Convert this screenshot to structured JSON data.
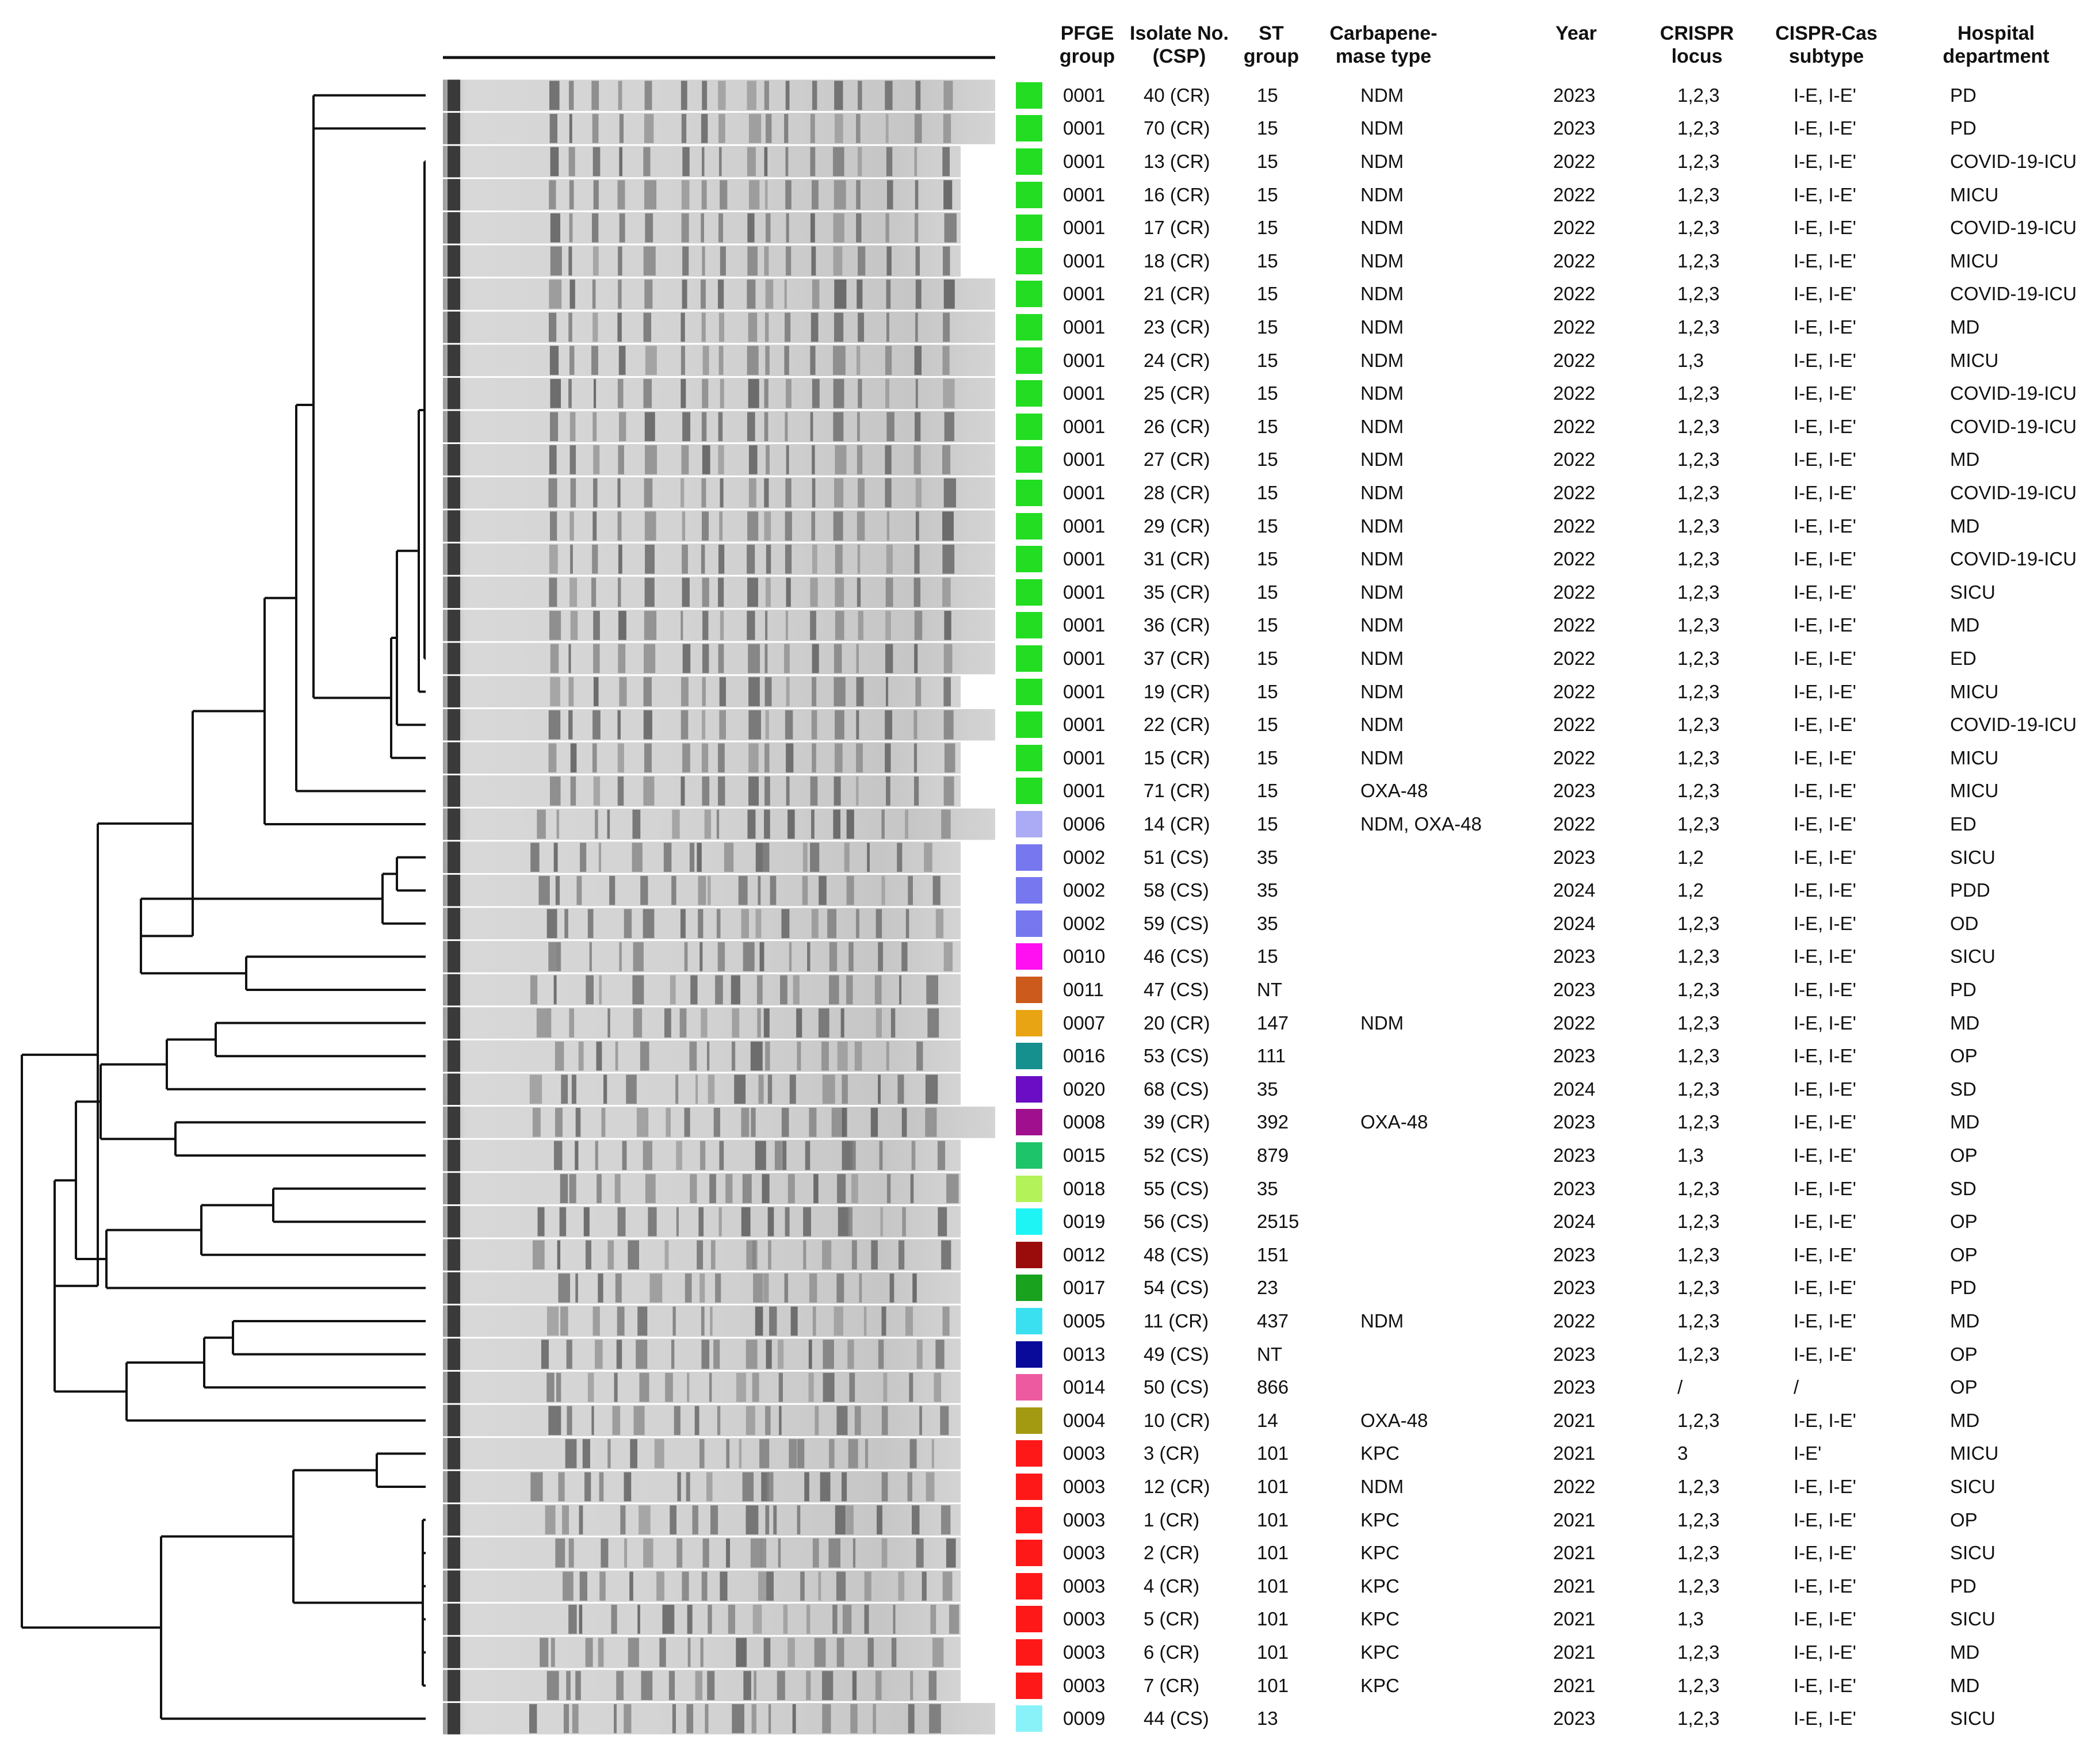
{
  "headers": {
    "pfge": "PFGE\ngroup",
    "isolate": "Isolate No.\n(CSP)",
    "st": "ST\ngroup",
    "carb": "Carbapene-\nmase type",
    "year": "Year",
    "crispr": "CRISPR\nlocus",
    "cas": "CISPR-Cas\nsubtype",
    "dept": "Hospital\ndepartment"
  },
  "rows": [
    {
      "color": "#22dd22",
      "pfge": "0001",
      "isolate": "40 (CR)",
      "st": "15",
      "carb": "NDM",
      "year": "2023",
      "crispr": "1,2,3",
      "cas": "I-E, I-E'",
      "dept": "PD"
    },
    {
      "color": "#22dd22",
      "pfge": "0001",
      "isolate": "70 (CR)",
      "st": "15",
      "carb": "NDM",
      "year": "2023",
      "crispr": "1,2,3",
      "cas": "I-E, I-E'",
      "dept": "PD"
    },
    {
      "color": "#22dd22",
      "pfge": "0001",
      "isolate": "13 (CR)",
      "st": "15",
      "carb": "NDM",
      "year": "2022",
      "crispr": "1,2,3",
      "cas": "I-E, I-E'",
      "dept": "COVID-19-ICU"
    },
    {
      "color": "#22dd22",
      "pfge": "0001",
      "isolate": "16 (CR)",
      "st": "15",
      "carb": "NDM",
      "year": "2022",
      "crispr": "1,2,3",
      "cas": "I-E, I-E'",
      "dept": "MICU"
    },
    {
      "color": "#22dd22",
      "pfge": "0001",
      "isolate": "17 (CR)",
      "st": "15",
      "carb": "NDM",
      "year": "2022",
      "crispr": "1,2,3",
      "cas": "I-E, I-E'",
      "dept": "COVID-19-ICU"
    },
    {
      "color": "#22dd22",
      "pfge": "0001",
      "isolate": "18 (CR)",
      "st": "15",
      "carb": "NDM",
      "year": "2022",
      "crispr": "1,2,3",
      "cas": "I-E, I-E'",
      "dept": "MICU"
    },
    {
      "color": "#22dd22",
      "pfge": "0001",
      "isolate": "21 (CR)",
      "st": "15",
      "carb": "NDM",
      "year": "2022",
      "crispr": "1,2,3",
      "cas": "I-E, I-E'",
      "dept": "COVID-19-ICU"
    },
    {
      "color": "#22dd22",
      "pfge": "0001",
      "isolate": "23 (CR)",
      "st": "15",
      "carb": "NDM",
      "year": "2022",
      "crispr": "1,2,3",
      "cas": "I-E, I-E'",
      "dept": "MD"
    },
    {
      "color": "#22dd22",
      "pfge": "0001",
      "isolate": "24 (CR)",
      "st": "15",
      "carb": "NDM",
      "year": "2022",
      "crispr": "1,3",
      "cas": "I-E, I-E'",
      "dept": "MICU"
    },
    {
      "color": "#22dd22",
      "pfge": "0001",
      "isolate": "25 (CR)",
      "st": "15",
      "carb": "NDM",
      "year": "2022",
      "crispr": "1,2,3",
      "cas": "I-E, I-E'",
      "dept": "COVID-19-ICU"
    },
    {
      "color": "#22dd22",
      "pfge": "0001",
      "isolate": "26 (CR)",
      "st": "15",
      "carb": "NDM",
      "year": "2022",
      "crispr": "1,2,3",
      "cas": "I-E, I-E'",
      "dept": "COVID-19-ICU"
    },
    {
      "color": "#22dd22",
      "pfge": "0001",
      "isolate": "27 (CR)",
      "st": "15",
      "carb": "NDM",
      "year": "2022",
      "crispr": "1,2,3",
      "cas": "I-E, I-E'",
      "dept": "MD"
    },
    {
      "color": "#22dd22",
      "pfge": "0001",
      "isolate": "28 (CR)",
      "st": "15",
      "carb": "NDM",
      "year": "2022",
      "crispr": "1,2,3",
      "cas": "I-E, I-E'",
      "dept": "COVID-19-ICU"
    },
    {
      "color": "#22dd22",
      "pfge": "0001",
      "isolate": "29 (CR)",
      "st": "15",
      "carb": "NDM",
      "year": "2022",
      "crispr": "1,2,3",
      "cas": "I-E, I-E'",
      "dept": "MD"
    },
    {
      "color": "#22dd22",
      "pfge": "0001",
      "isolate": "31 (CR)",
      "st": "15",
      "carb": "NDM",
      "year": "2022",
      "crispr": "1,2,3",
      "cas": "I-E, I-E'",
      "dept": "COVID-19-ICU"
    },
    {
      "color": "#22dd22",
      "pfge": "0001",
      "isolate": "35 (CR)",
      "st": "15",
      "carb": "NDM",
      "year": "2022",
      "crispr": "1,2,3",
      "cas": "I-E, I-E'",
      "dept": "SICU"
    },
    {
      "color": "#22dd22",
      "pfge": "0001",
      "isolate": "36 (CR)",
      "st": "15",
      "carb": "NDM",
      "year": "2022",
      "crispr": "1,2,3",
      "cas": "I-E, I-E'",
      "dept": "MD"
    },
    {
      "color": "#22dd22",
      "pfge": "0001",
      "isolate": "37 (CR)",
      "st": "15",
      "carb": "NDM",
      "year": "2022",
      "crispr": "1,2,3",
      "cas": "I-E, I-E'",
      "dept": "ED"
    },
    {
      "color": "#22dd22",
      "pfge": "0001",
      "isolate": "19 (CR)",
      "st": "15",
      "carb": "NDM",
      "year": "2022",
      "crispr": "1,2,3",
      "cas": "I-E, I-E'",
      "dept": "MICU"
    },
    {
      "color": "#22dd22",
      "pfge": "0001",
      "isolate": "22 (CR)",
      "st": "15",
      "carb": "NDM",
      "year": "2022",
      "crispr": "1,2,3",
      "cas": "I-E, I-E'",
      "dept": "COVID-19-ICU"
    },
    {
      "color": "#22dd22",
      "pfge": "0001",
      "isolate": "15 (CR)",
      "st": "15",
      "carb": "NDM",
      "year": "2022",
      "crispr": "1,2,3",
      "cas": "I-E, I-E'",
      "dept": "MICU"
    },
    {
      "color": "#22dd22",
      "pfge": "0001",
      "isolate": "71 (CR)",
      "st": "15",
      "carb": "OXA-48",
      "year": "2023",
      "crispr": "1,2,3",
      "cas": "I-E, I-E'",
      "dept": "MICU"
    },
    {
      "color": "#aaaaf5",
      "pfge": "0006",
      "isolate": "14 (CR)",
      "st": "15",
      "carb": "NDM, OXA-48",
      "year": "2022",
      "crispr": "1,2,3",
      "cas": "I-E, I-E'",
      "dept": "ED"
    },
    {
      "color": "#7777f0",
      "pfge": "0002",
      "isolate": "51 (CS)",
      "st": "35",
      "carb": "",
      "year": "2023",
      "crispr": "1,2",
      "cas": "I-E, I-E'",
      "dept": "SICU"
    },
    {
      "color": "#7777f0",
      "pfge": "0002",
      "isolate": "58 (CS)",
      "st": "35",
      "carb": "",
      "year": "2024",
      "crispr": "1,2",
      "cas": "I-E, I-E'",
      "dept": "PDD"
    },
    {
      "color": "#7777f0",
      "pfge": "0002",
      "isolate": "59 (CS)",
      "st": "35",
      "carb": "",
      "year": "2024",
      "crispr": "1,2,3",
      "cas": "I-E, I-E'",
      "dept": "OD"
    },
    {
      "color": "#ff10f0",
      "pfge": "0010",
      "isolate": "46 (CS)",
      "st": "15",
      "carb": "",
      "year": "2023",
      "crispr": "1,2,3",
      "cas": "I-E, I-E'",
      "dept": "SICU"
    },
    {
      "color": "#cc5a1c",
      "pfge": "0011",
      "isolate": "47 (CS)",
      "st": "NT",
      "carb": "",
      "year": "2023",
      "crispr": "1,2,3",
      "cas": "I-E, I-E'",
      "dept": "PD"
    },
    {
      "color": "#e8a412",
      "pfge": "0007",
      "isolate": "20 (CR)",
      "st": "147",
      "carb": "NDM",
      "year": "2022",
      "crispr": "1,2,3",
      "cas": "I-E, I-E'",
      "dept": "MD"
    },
    {
      "color": "#168f8f",
      "pfge": "0016",
      "isolate": "53 (CS)",
      "st": "111",
      "carb": "",
      "year": "2023",
      "crispr": "1,2,3",
      "cas": "I-E, I-E'",
      "dept": "OP"
    },
    {
      "color": "#6a0dc4",
      "pfge": "0020",
      "isolate": "68 (CS)",
      "st": "35",
      "carb": "",
      "year": "2024",
      "crispr": "1,2,3",
      "cas": "I-E, I-E'",
      "dept": "SD"
    },
    {
      "color": "#a0108e",
      "pfge": "0008",
      "isolate": "39 (CR)",
      "st": "392",
      "carb": "OXA-48",
      "year": "2023",
      "crispr": "1,2,3",
      "cas": "I-E, I-E'",
      "dept": "MD"
    },
    {
      "color": "#1ec46a",
      "pfge": "0015",
      "isolate": "52 (CS)",
      "st": "879",
      "carb": "",
      "year": "2023",
      "crispr": "1,3",
      "cas": "I-E, I-E'",
      "dept": "OP"
    },
    {
      "color": "#b4f25a",
      "pfge": "0018",
      "isolate": "55 (CS)",
      "st": "35",
      "carb": "",
      "year": "2023",
      "crispr": "1,2,3",
      "cas": "I-E, I-E'",
      "dept": "SD"
    },
    {
      "color": "#1ef4f4",
      "pfge": "0019",
      "isolate": "56 (CS)",
      "st": "2515",
      "carb": "",
      "year": "2024",
      "crispr": "1,2,3",
      "cas": "I-E, I-E'",
      "dept": "OP"
    },
    {
      "color": "#9a0c0c",
      "pfge": "0012",
      "isolate": "48 (CS)",
      "st": "151",
      "carb": "",
      "year": "2023",
      "crispr": "1,2,3",
      "cas": "I-E, I-E'",
      "dept": "OP"
    },
    {
      "color": "#18a21e",
      "pfge": "0017",
      "isolate": "54 (CS)",
      "st": "23",
      "carb": "",
      "year": "2023",
      "crispr": "1,2,3",
      "cas": "I-E, I-E'",
      "dept": "PD"
    },
    {
      "color": "#3ae0f0",
      "pfge": "0005",
      "isolate": "11 (CR)",
      "st": "437",
      "carb": "NDM",
      "year": "2022",
      "crispr": "1,2,3",
      "cas": "I-E, I-E'",
      "dept": "MD"
    },
    {
      "color": "#0a0a9a",
      "pfge": "0013",
      "isolate": "49 (CS)",
      "st": "NT",
      "carb": "",
      "year": "2023",
      "crispr": "1,2,3",
      "cas": "I-E, I-E'",
      "dept": "OP"
    },
    {
      "color": "#ee5aa0",
      "pfge": "0014",
      "isolate": "50 (CS)",
      "st": "866",
      "carb": "",
      "year": "2023",
      "crispr": "/",
      "cas": "/",
      "dept": "OP"
    },
    {
      "color": "#a49a12",
      "pfge": "0004",
      "isolate": "10 (CR)",
      "st": "14",
      "carb": "OXA-48",
      "year": "2021",
      "crispr": "1,2,3",
      "cas": "I-E, I-E'",
      "dept": "MD"
    },
    {
      "color": "#ff1818",
      "pfge": "0003",
      "isolate": "3 (CR)",
      "st": "101",
      "carb": "KPC",
      "year": "2021",
      "crispr": "3",
      "cas": "I-E'",
      "dept": "MICU"
    },
    {
      "color": "#ff1818",
      "pfge": "0003",
      "isolate": "12 (CR)",
      "st": "101",
      "carb": "NDM",
      "year": "2022",
      "crispr": "1,2,3",
      "cas": "I-E, I-E'",
      "dept": "SICU"
    },
    {
      "color": "#ff1818",
      "pfge": "0003",
      "isolate": "1 (CR)",
      "st": "101",
      "carb": "KPC",
      "year": "2021",
      "crispr": "1,2,3",
      "cas": "I-E, I-E'",
      "dept": "OP"
    },
    {
      "color": "#ff1818",
      "pfge": "0003",
      "isolate": "2 (CR)",
      "st": "101",
      "carb": "KPC",
      "year": "2021",
      "crispr": "1,2,3",
      "cas": "I-E, I-E'",
      "dept": "SICU"
    },
    {
      "color": "#ff1818",
      "pfge": "0003",
      "isolate": "4 (CR)",
      "st": "101",
      "carb": "KPC",
      "year": "2021",
      "crispr": "1,2,3",
      "cas": "I-E, I-E'",
      "dept": "PD"
    },
    {
      "color": "#ff1818",
      "pfge": "0003",
      "isolate": "5 (CR)",
      "st": "101",
      "carb": "KPC",
      "year": "2021",
      "crispr": "1,3",
      "cas": "I-E, I-E'",
      "dept": "SICU"
    },
    {
      "color": "#ff1818",
      "pfge": "0003",
      "isolate": "6 (CR)",
      "st": "101",
      "carb": "KPC",
      "year": "2021",
      "crispr": "1,2,3",
      "cas": "I-E, I-E'",
      "dept": "MD"
    },
    {
      "color": "#ff1818",
      "pfge": "0003",
      "isolate": "7 (CR)",
      "st": "101",
      "carb": "KPC",
      "year": "2021",
      "crispr": "1,2,3",
      "cas": "I-E, I-E'",
      "dept": "MD"
    },
    {
      "color": "#88f2f8",
      "pfge": "0009",
      "isolate": "44 (CS)",
      "st": "13",
      "carb": "",
      "year": "2023",
      "crispr": "1,2,3",
      "cas": "I-E, I-E'",
      "dept": "SICU"
    }
  ]
}
